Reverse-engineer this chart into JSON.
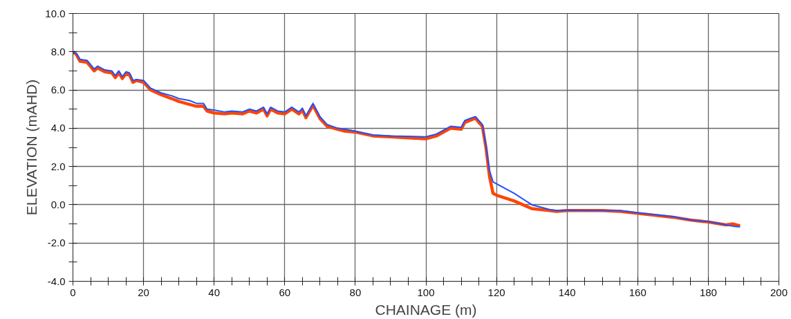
{
  "chart_data": {
    "type": "line",
    "xlabel": "CHAINAGE (m)",
    "ylabel": "ELEVATION (mAHD)",
    "xlim": [
      0,
      200
    ],
    "ylim": [
      -4.0,
      10.0
    ],
    "xticks": [
      0,
      {
        "value": 5,
        "label": null
      },
      {
        "value": 10,
        "label": null
      },
      {
        "value": 15,
        "label": null
      },
      20,
      {
        "value": 25,
        "label": null
      },
      {
        "value": 30,
        "label": null
      },
      {
        "value": 35,
        "label": null
      },
      40,
      {
        "value": 45,
        "label": null
      },
      {
        "value": 50,
        "label": null
      },
      {
        "value": 55,
        "label": null
      },
      60,
      {
        "value": 65,
        "label": null
      },
      {
        "value": 70,
        "label": null
      },
      {
        "value": 75,
        "label": null
      },
      80,
      {
        "value": 85,
        "label": null
      },
      {
        "value": 90,
        "label": null
      },
      {
        "value": 95,
        "label": null
      },
      100,
      {
        "value": 105,
        "label": null
      },
      {
        "value": 110,
        "label": null
      },
      {
        "value": 115,
        "label": null
      },
      120,
      {
        "value": 125,
        "label": null
      },
      {
        "value": 130,
        "label": null
      },
      {
        "value": 135,
        "label": null
      },
      140,
      {
        "value": 145,
        "label": null
      },
      {
        "value": 150,
        "label": null
      },
      {
        "value": 155,
        "label": null
      },
      160,
      {
        "value": 165,
        "label": null
      },
      {
        "value": 170,
        "label": null
      },
      {
        "value": 175,
        "label": null
      },
      180,
      {
        "value": 185,
        "label": null
      },
      {
        "value": 190,
        "label": null
      },
      {
        "value": 195,
        "label": null
      },
      200
    ],
    "yticks": [
      {
        "value": -4,
        "label": "-4.0"
      },
      {
        "value": -3,
        "label": null
      },
      {
        "value": -2,
        "label": "-2.0"
      },
      {
        "value": -1,
        "label": null
      },
      {
        "value": 0,
        "label": "0.0"
      },
      {
        "value": 1,
        "label": null
      },
      {
        "value": 2,
        "label": "2.0"
      },
      {
        "value": 3,
        "label": null
      },
      {
        "value": 4,
        "label": "4.0"
      },
      {
        "value": 5,
        "label": null
      },
      {
        "value": 6,
        "label": "6.0"
      },
      {
        "value": 7,
        "label": null
      },
      {
        "value": 8,
        "label": "8.0"
      },
      {
        "value": 9,
        "label": null
      },
      {
        "value": 10,
        "label": "10.0"
      }
    ],
    "grid": true,
    "marker": "none",
    "line_style": "solid",
    "series": [
      {
        "color": "#ff4500",
        "x": [
          0,
          1,
          2,
          4,
          6,
          7,
          9,
          11,
          12,
          13,
          14,
          15,
          16,
          17,
          18,
          20,
          22,
          25,
          28,
          30,
          33,
          35,
          37,
          38,
          40,
          43,
          45,
          48,
          50,
          52,
          54,
          55,
          56,
          58,
          60,
          62,
          64,
          65,
          66,
          68,
          70,
          72,
          75,
          77,
          80,
          85,
          90,
          95,
          100,
          103,
          106,
          107,
          110,
          111,
          113,
          114,
          115,
          116,
          117,
          118,
          119,
          120,
          125,
          130,
          135,
          137,
          140,
          150,
          155,
          160,
          170,
          175,
          180,
          185,
          187,
          189
        ],
        "values": [
          8.0,
          7.85,
          7.5,
          7.45,
          7.0,
          7.15,
          6.95,
          6.9,
          6.65,
          6.9,
          6.6,
          6.85,
          6.8,
          6.4,
          6.5,
          6.4,
          6.0,
          5.75,
          5.55,
          5.4,
          5.25,
          5.15,
          5.15,
          4.9,
          4.8,
          4.75,
          4.8,
          4.75,
          4.9,
          4.8,
          5.0,
          4.65,
          5.0,
          4.8,
          4.75,
          5.0,
          4.75,
          4.95,
          4.55,
          5.2,
          4.5,
          4.1,
          3.95,
          3.85,
          3.8,
          3.6,
          3.55,
          3.5,
          3.45,
          3.6,
          3.9,
          4.0,
          3.95,
          4.3,
          4.45,
          4.55,
          4.3,
          4.1,
          3.0,
          1.5,
          0.6,
          0.5,
          0.2,
          -0.2,
          -0.3,
          -0.35,
          -0.3,
          -0.3,
          -0.35,
          -0.45,
          -0.65,
          -0.8,
          -0.9,
          -1.05,
          -1.0,
          -1.1
        ]
      },
      {
        "color": "#1f4fff",
        "x": [
          0,
          1,
          2,
          4,
          6,
          7,
          9,
          11,
          12,
          13,
          14,
          15,
          16,
          17,
          18,
          20,
          22,
          25,
          28,
          30,
          33,
          35,
          37,
          38,
          40,
          43,
          45,
          48,
          50,
          52,
          54,
          55,
          56,
          58,
          60,
          62,
          64,
          65,
          66,
          68,
          70,
          72,
          75,
          77,
          80,
          85,
          90,
          95,
          100,
          103,
          106,
          107,
          110,
          111,
          113,
          114,
          115,
          116,
          117,
          118,
          119,
          125,
          130,
          135,
          137,
          140,
          150,
          155,
          160,
          170,
          175,
          180,
          185,
          187,
          189
        ],
        "values": [
          8.0,
          7.9,
          7.6,
          7.55,
          7.1,
          7.25,
          7.05,
          7.0,
          6.75,
          7.0,
          6.7,
          6.95,
          6.9,
          6.5,
          6.55,
          6.5,
          6.1,
          5.85,
          5.7,
          5.55,
          5.45,
          5.3,
          5.3,
          5.0,
          4.95,
          4.85,
          4.9,
          4.85,
          5.0,
          4.9,
          5.1,
          4.75,
          5.1,
          4.9,
          4.85,
          5.1,
          4.85,
          5.05,
          4.65,
          5.3,
          4.6,
          4.2,
          4.0,
          3.95,
          3.85,
          3.65,
          3.6,
          3.58,
          3.55,
          3.7,
          4.0,
          4.1,
          4.05,
          4.4,
          4.55,
          4.6,
          4.4,
          4.2,
          3.1,
          1.8,
          1.2,
          0.6,
          0.0,
          -0.25,
          -0.3,
          -0.28,
          -0.3,
          -0.3,
          -0.42,
          -0.62,
          -0.8,
          -0.88,
          -1.05,
          -1.12,
          -1.15
        ]
      }
    ]
  }
}
